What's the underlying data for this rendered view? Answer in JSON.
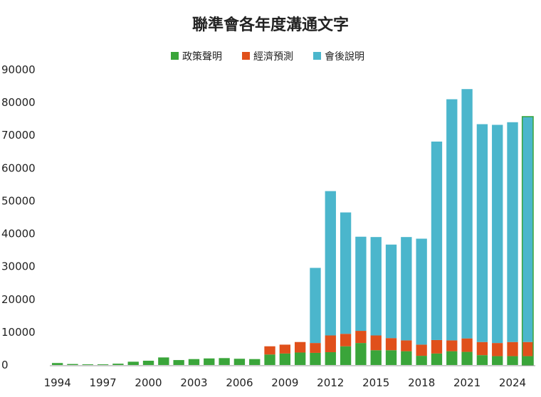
{
  "chart_data": {
    "type": "bar",
    "stacked": true,
    "title": "聯準會各年度溝通文字",
    "xlabel": "",
    "ylabel": "",
    "ylim": [
      0,
      90000
    ],
    "yticks": [
      0,
      10000,
      20000,
      30000,
      40000,
      50000,
      60000,
      70000,
      80000,
      90000
    ],
    "grid": false,
    "legend_position": "top-center",
    "categories": [
      1994,
      1995,
      1996,
      1997,
      1998,
      1999,
      2000,
      2001,
      2002,
      2003,
      2004,
      2005,
      2006,
      2007,
      2008,
      2009,
      2010,
      2011,
      2012,
      2013,
      2014,
      2015,
      2016,
      2017,
      2018,
      2019,
      2020,
      2021,
      2022,
      2023,
      2024,
      2025
    ],
    "x_tick_labels": [
      "1994",
      "1997",
      "2000",
      "2003",
      "2006",
      "2009",
      "2012",
      "2015",
      "2018",
      "2021",
      "2024"
    ],
    "series": [
      {
        "name": "政策聲明",
        "color": "#3aa53a",
        "values": [
          600,
          300,
          200,
          200,
          400,
          1000,
          1300,
          2300,
          1500,
          1800,
          2000,
          2100,
          1900,
          1800,
          3200,
          3500,
          3800,
          3700,
          3900,
          5700,
          6700,
          4500,
          4500,
          4200,
          2800,
          3500,
          4200,
          4000,
          3000,
          2700,
          2700,
          2700
        ]
      },
      {
        "name": "經濟預測",
        "color": "#e0501b",
        "values": [
          0,
          0,
          0,
          0,
          0,
          0,
          0,
          0,
          0,
          0,
          0,
          0,
          0,
          0,
          2500,
          2700,
          3200,
          3000,
          5100,
          3800,
          3700,
          4500,
          3700,
          3300,
          3400,
          4100,
          3300,
          4100,
          4000,
          4000,
          4300,
          4300
        ]
      },
      {
        "name": "會後說明",
        "color": "#4bb6cc",
        "values": [
          0,
          0,
          0,
          0,
          0,
          0,
          0,
          0,
          0,
          0,
          0,
          0,
          0,
          0,
          0,
          0,
          0,
          22900,
          44000,
          37000,
          28700,
          30000,
          28500,
          31500,
          32300,
          60500,
          73500,
          76000,
          66400,
          66500,
          67000,
          68700
        ]
      }
    ]
  }
}
